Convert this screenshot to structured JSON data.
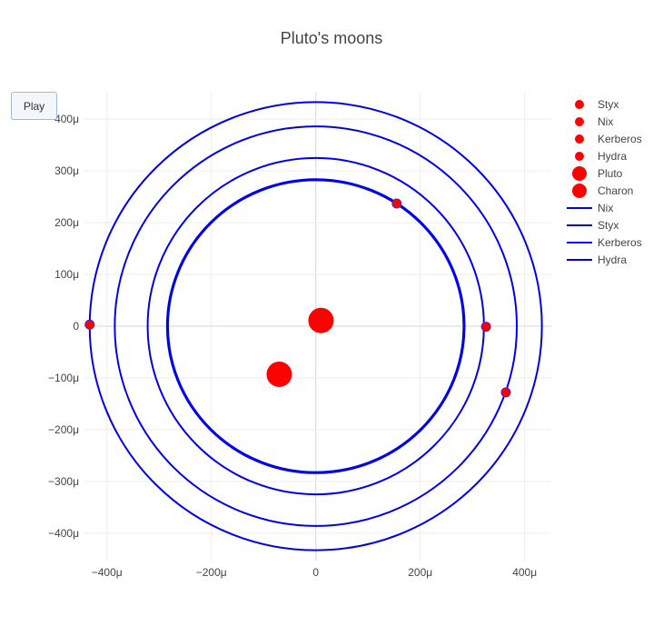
{
  "chart_data": {
    "type": "scatter",
    "title": "Pluto's moons",
    "xlabel": "",
    "ylabel": "",
    "xlim": [
      -0.000443,
      0.000451
    ],
    "ylim": [
      -0.000453,
      0.000453
    ],
    "x_ticks": [
      {
        "value": -0.0004,
        "label": "−400μ"
      },
      {
        "value": -0.0002,
        "label": "−200μ"
      },
      {
        "value": 0,
        "label": "0"
      },
      {
        "value": 0.0002,
        "label": "200μ"
      },
      {
        "value": 0.0004,
        "label": "400μ"
      }
    ],
    "y_ticks": [
      {
        "value": 0.0004,
        "label": "400μ"
      },
      {
        "value": 0.0003,
        "label": "300μ"
      },
      {
        "value": 0.0002,
        "label": "200μ"
      },
      {
        "value": 0.0001,
        "label": "100μ"
      },
      {
        "value": 0,
        "label": "0"
      },
      {
        "value": -0.0001,
        "label": "−100μ"
      },
      {
        "value": -0.0002,
        "label": "−200μ"
      },
      {
        "value": -0.0003,
        "label": "−300μ"
      },
      {
        "value": -0.0004,
        "label": "−400μ"
      }
    ],
    "grid": true,
    "legend_position": "right",
    "series": [
      {
        "name": "Styx",
        "kind": "marker",
        "color": "#ff0000",
        "size": "small",
        "x": 0.000155,
        "y": 0.000237
      },
      {
        "name": "Nix",
        "kind": "marker",
        "color": "#ff0000",
        "size": "small",
        "x": 0.000326,
        "y": -1e-06
      },
      {
        "name": "Kerberos",
        "kind": "marker",
        "color": "#ff0000",
        "size": "small",
        "x": 0.000364,
        "y": -0.000128
      },
      {
        "name": "Hydra",
        "kind": "marker",
        "color": "#ff0000",
        "size": "small",
        "x": -0.000433,
        "y": 3e-06
      },
      {
        "name": "Pluto",
        "kind": "marker",
        "color": "#ff0000",
        "size": "large",
        "x": 1e-05,
        "y": 1.1e-05
      },
      {
        "name": "Charon",
        "kind": "marker",
        "color": "#ff0000",
        "size": "large",
        "x": -7e-05,
        "y": -9.3e-05
      },
      {
        "name": "Nix",
        "kind": "line",
        "color": "#0000ee",
        "center": [
          0.0,
          0.0
        ],
        "radius_x": 0.000285,
        "radius_y": 0.000284,
        "turns": [
          0,
          -2e-06
        ]
      },
      {
        "name": "Styx",
        "kind": "line",
        "color": "#0000ee",
        "center": [
          0.0,
          0.0
        ],
        "radius_x": 0.000322,
        "radius_y": 0.000325,
        "turns": [
          0
        ]
      },
      {
        "name": "Kerberos",
        "kind": "line",
        "color": "#0000ee",
        "center": [
          0.0,
          0.0
        ],
        "radius_x": 0.000385,
        "radius_y": 0.000386,
        "turns": [
          0
        ]
      },
      {
        "name": "Hydra",
        "kind": "line",
        "color": "#0000ee",
        "center": [
          0.0,
          0.0
        ],
        "radius_x": 0.000433,
        "radius_y": 0.000433,
        "turns": [
          0
        ]
      }
    ]
  },
  "controls": {
    "play_label": "Play"
  }
}
